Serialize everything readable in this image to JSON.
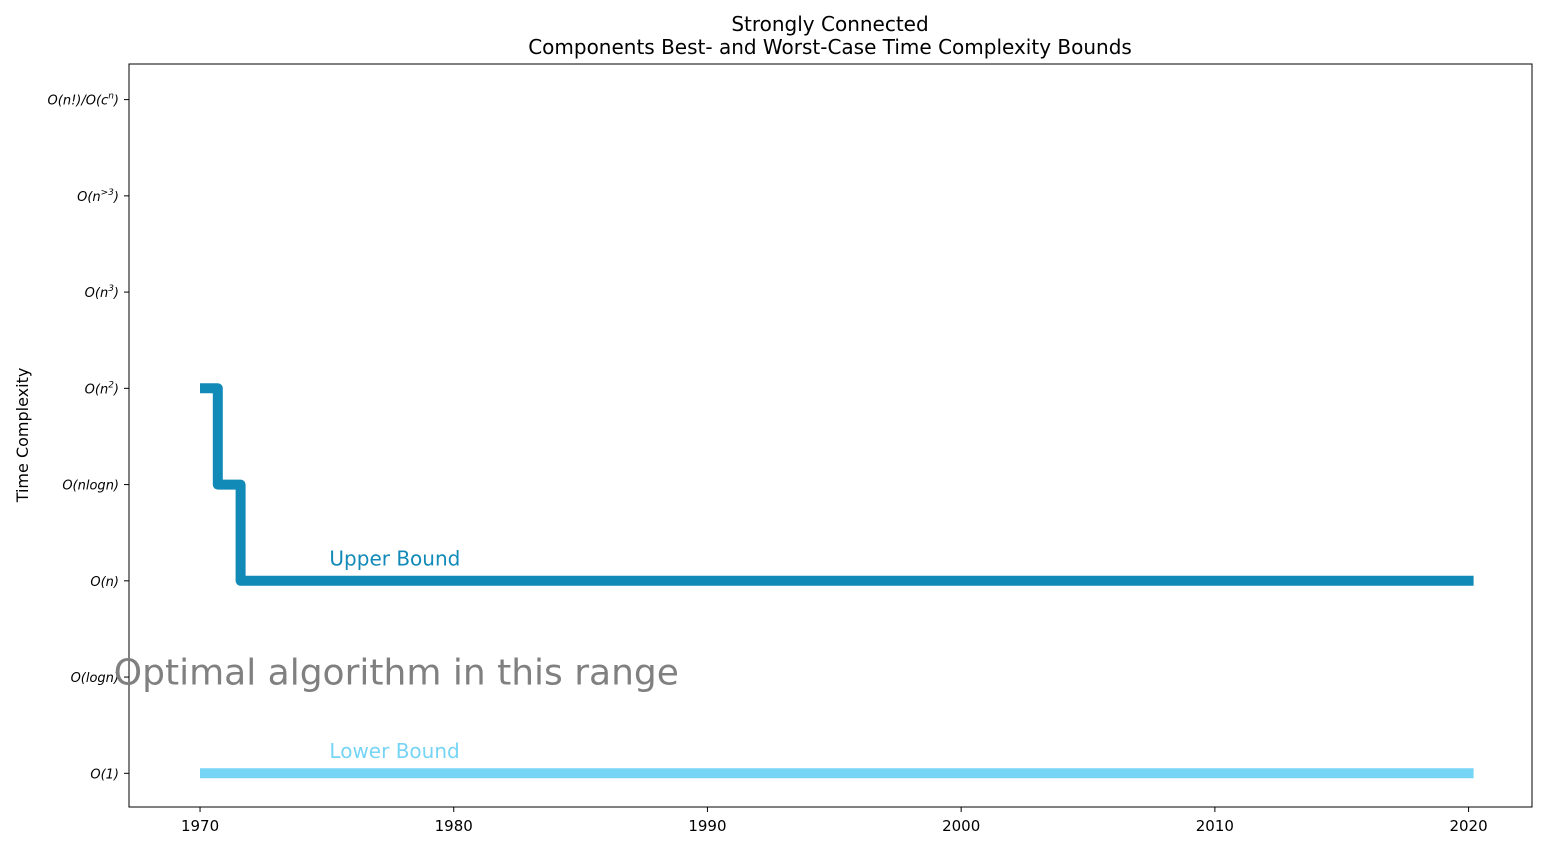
{
  "chart_data": {
    "type": "line",
    "step": "post",
    "title_lines": [
      "Strongly Connected",
      "Components Best- and Worst-Case Time Complexity Bounds"
    ],
    "xlabel": "",
    "ylabel": "Time Complexity",
    "xlim": [
      1967.2,
      2022.5
    ],
    "ylim": [
      -0.35,
      7.37
    ],
    "x_ticks": [
      1970,
      1980,
      1990,
      2000,
      2010,
      2020
    ],
    "y_ticks": [
      {
        "value": 0,
        "base": "O(1)",
        "sup": ""
      },
      {
        "value": 1,
        "base": "O(logn)",
        "sup": ""
      },
      {
        "value": 2,
        "base": "O(n)",
        "sup": ""
      },
      {
        "value": 3,
        "base": "O(nlogn)",
        "sup": ""
      },
      {
        "value": 4,
        "base": "O(n",
        "sup": "2",
        "tail": ")"
      },
      {
        "value": 5,
        "base": "O(n",
        "sup": "3",
        "tail": ")"
      },
      {
        "value": 6,
        "base": "O(n",
        "sup": ">3",
        "tail": ")"
      },
      {
        "value": 7,
        "base": "O(n!)/O(c",
        "sup": "n",
        "tail": ")"
      }
    ],
    "grid": false,
    "series": [
      {
        "name": "Upper Bound",
        "color": "#118ab8",
        "x": [
          1970,
          1970.7,
          1971.6,
          2020.2
        ],
        "y": [
          4,
          3,
          2,
          2
        ]
      },
      {
        "name": "Lower Bound",
        "color": "#76d4f5",
        "x": [
          1970,
          2020.2
        ],
        "y": [
          0,
          0
        ]
      }
    ],
    "series_labels": [
      {
        "text": "Upper Bound",
        "x": 1975.1,
        "y": 2.22,
        "color": "#118ab8"
      },
      {
        "text": "Lower Bound",
        "x": 1975.1,
        "y": 0.22,
        "color": "#76d4f5"
      }
    ],
    "annotation": {
      "text": "Optimal algorithm in this range",
      "x": 1966.6,
      "y": 1.05,
      "color": "#808080"
    }
  }
}
